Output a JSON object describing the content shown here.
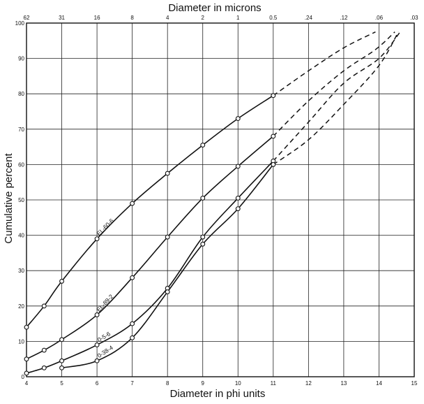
{
  "chart_data": {
    "type": "line",
    "title": "",
    "xlabel": "Diameter in phi units",
    "ylabel": "Cumulative percent",
    "x2label": "Diameter in microns",
    "xlim": [
      4,
      15
    ],
    "ylim": [
      0,
      100
    ],
    "grid": true,
    "legend": "none",
    "xticks": [
      "4",
      "5",
      "6",
      "7",
      "8",
      "9",
      "10",
      "11",
      "12",
      "13",
      "14",
      "15"
    ],
    "yticks": [
      "0",
      "10",
      "20",
      "30",
      "40",
      "50",
      "60",
      "70",
      "80",
      "90",
      "100"
    ],
    "x2ticks": [
      {
        "phi": 4,
        "label": "62"
      },
      {
        "phi": 5,
        "label": "31"
      },
      {
        "phi": 6,
        "label": "16"
      },
      {
        "phi": 7,
        "label": "8"
      },
      {
        "phi": 8,
        "label": "4"
      },
      {
        "phi": 9,
        "label": "2"
      },
      {
        "phi": 10,
        "label": "1"
      },
      {
        "phi": 11,
        "label": "0.5"
      },
      {
        "phi": 12,
        "label": ".24"
      },
      {
        "phi": 13,
        "label": ".12"
      },
      {
        "phi": 14,
        "label": ".06"
      },
      {
        "phi": 15,
        "label": ".03"
      }
    ],
    "series": [
      {
        "name": "EL-60-6",
        "points": [
          [
            4,
            14
          ],
          [
            4.5,
            20
          ],
          [
            5,
            27
          ],
          [
            6,
            39
          ],
          [
            7,
            49
          ],
          [
            8,
            57.5
          ],
          [
            9,
            65.5
          ],
          [
            10,
            73
          ],
          [
            11,
            79.5
          ]
        ],
        "extrapolated": [
          [
            11,
            79.5
          ],
          [
            12,
            86.5
          ],
          [
            13,
            93
          ],
          [
            13.9,
            97.5
          ]
        ],
        "label_anchor": [
          6,
          39
        ]
      },
      {
        "name": "EL-89-2",
        "points": [
          [
            4,
            5
          ],
          [
            4.5,
            7.5
          ],
          [
            5,
            10.5
          ],
          [
            6,
            17.5
          ],
          [
            7,
            28
          ],
          [
            8,
            39.5
          ],
          [
            9,
            50.5
          ],
          [
            10,
            59.5
          ],
          [
            11,
            68
          ]
        ],
        "extrapolated": [
          [
            11,
            68
          ],
          [
            12,
            78
          ],
          [
            13,
            86.5
          ],
          [
            13.9,
            92.5
          ],
          [
            14.45,
            97.5
          ]
        ],
        "label_anchor": [
          6,
          17.5
        ]
      },
      {
        "name": "0-5-6",
        "points": [
          [
            4,
            1
          ],
          [
            4.5,
            2.5
          ],
          [
            5,
            4.5
          ],
          [
            6,
            9
          ],
          [
            7,
            15
          ],
          [
            8,
            25
          ],
          [
            9,
            39.5
          ],
          [
            10,
            50.5
          ],
          [
            11,
            61
          ]
        ],
        "extrapolated": [
          [
            11,
            61
          ],
          [
            12,
            72
          ],
          [
            13,
            83
          ],
          [
            14,
            90
          ],
          [
            14.6,
            97.5
          ]
        ],
        "label_anchor": [
          6,
          9
        ]
      },
      {
        "name": "0-38-4",
        "points": [
          [
            5,
            2.5
          ],
          [
            6,
            4.5
          ],
          [
            7,
            11
          ],
          [
            8,
            24
          ],
          [
            9,
            37.5
          ],
          [
            10,
            47.5
          ],
          [
            11,
            60
          ]
        ],
        "extrapolated": [
          [
            11,
            60
          ],
          [
            12,
            67
          ],
          [
            13,
            77
          ],
          [
            14,
            88
          ],
          [
            14.55,
            97.5
          ]
        ],
        "label_anchor": [
          6,
          4.5
        ]
      }
    ]
  }
}
